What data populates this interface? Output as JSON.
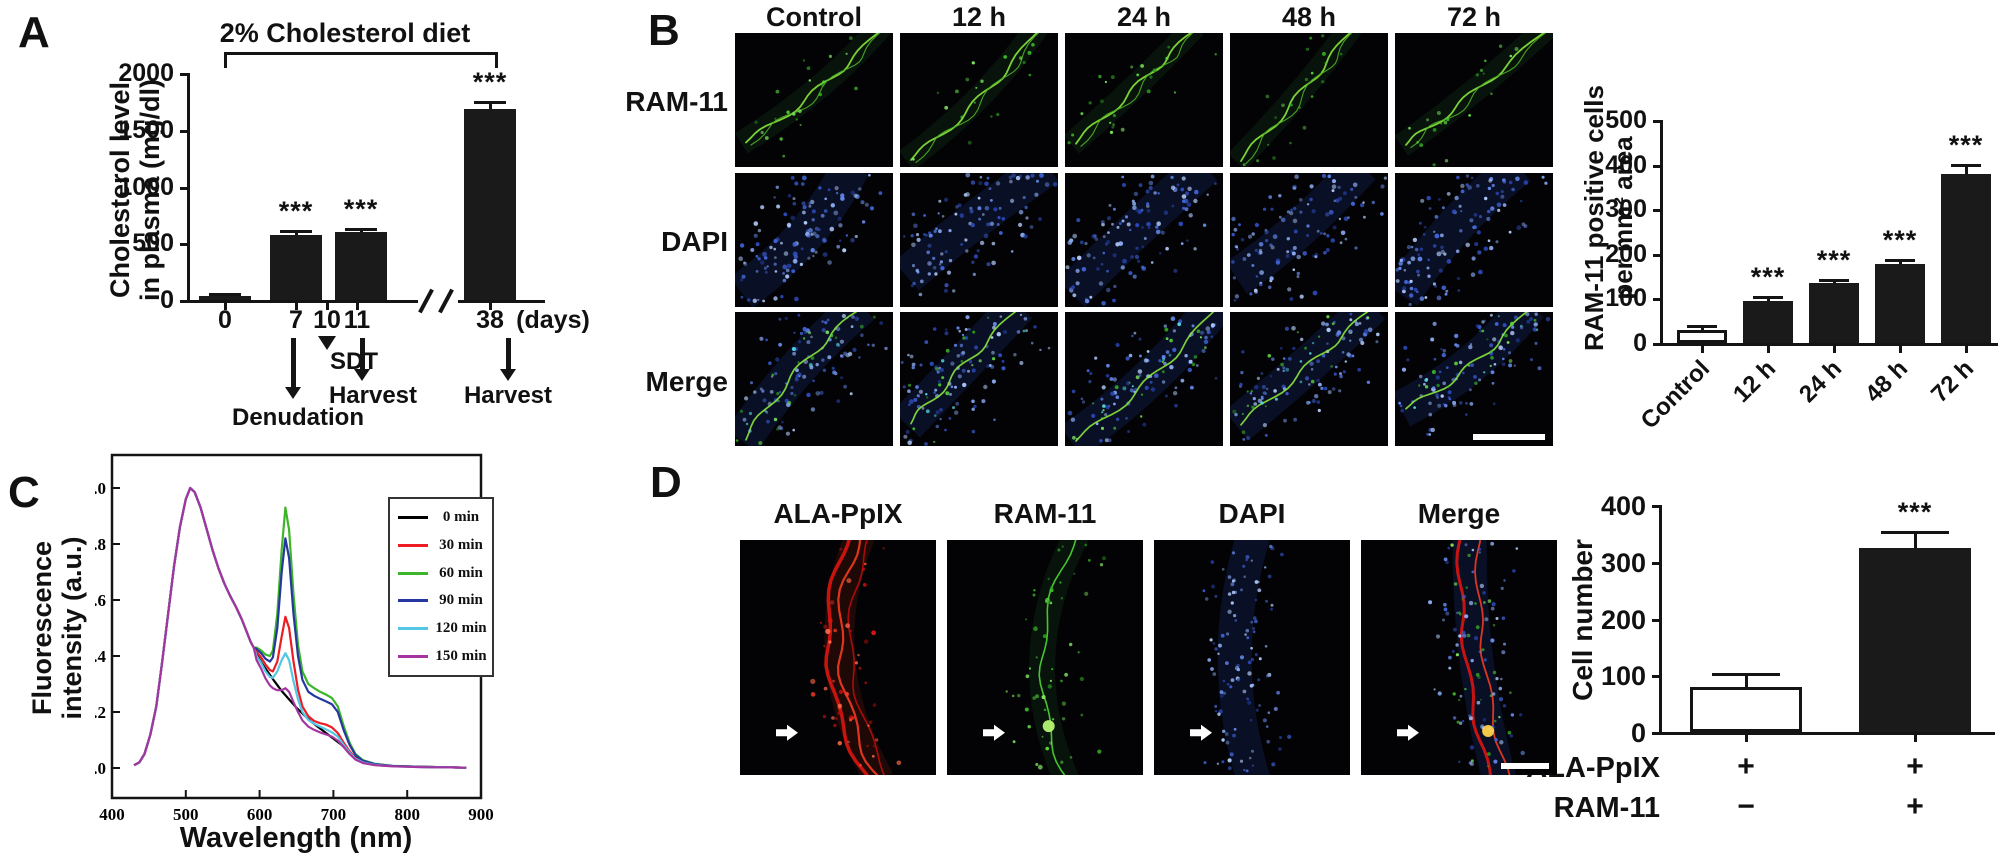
{
  "panelA": {
    "label": "A",
    "title": "2% Cholesterol diet",
    "chart_data": {
      "type": "bar",
      "ylabel_line1": "Cholesterol level",
      "ylabel_line2": "in plasma (mg/dl)",
      "ylim": [
        0,
        2000
      ],
      "yticks": [
        0,
        500,
        1000,
        1500,
        2000
      ],
      "xticks": [
        "0",
        "7",
        "10",
        "11",
        "38"
      ],
      "xunit": "(days)",
      "categories": [
        "0",
        "7",
        "11",
        "38"
      ],
      "values": [
        35,
        575,
        600,
        1680
      ],
      "errors": [
        10,
        25,
        20,
        60
      ],
      "sig": [
        "",
        "***",
        "***",
        "***"
      ],
      "axis_break_between": [
        "11",
        "38"
      ]
    },
    "annotations": {
      "sdt": "SDT",
      "harvest_a": "Harvest",
      "denudation": "Denudation",
      "harvest_b": "Harvest"
    }
  },
  "panelB": {
    "label": "B",
    "col_headers": [
      "Control",
      "12 h",
      "24 h",
      "48 h",
      "72 h"
    ],
    "row_labels": [
      "RAM-11",
      "DAPI",
      "Merge"
    ],
    "chart_data": {
      "type": "bar",
      "ylabel_line1": "RAM-11 positive cells",
      "ylabel_line2": "per mm² area",
      "ylim": [
        0,
        500
      ],
      "yticks": [
        0,
        100,
        200,
        300,
        400,
        500
      ],
      "categories": [
        "Control",
        "12 h",
        "24 h",
        "48 h",
        "72 h"
      ],
      "values": [
        30,
        95,
        135,
        178,
        378
      ],
      "errors": [
        6,
        5,
        5,
        6,
        18
      ],
      "sig": [
        "",
        "***",
        "***",
        "***",
        "***"
      ],
      "white_bars": [
        0
      ]
    }
  },
  "panelC": {
    "label": "C",
    "chart_data": {
      "type": "line",
      "xlabel": "Wavelength (nm)",
      "ylabel_line1": "Fluorescence",
      "ylabel_line2": "intensity (a.u.)",
      "xlim": [
        400,
        900
      ],
      "ylim": [
        0.0,
        1.05
      ],
      "xticks": [
        400,
        500,
        600,
        700,
        800,
        900
      ],
      "yticks": [
        "0.0",
        "0.2",
        "0.4",
        "0.6",
        "0.8",
        "1.0"
      ],
      "legend_position": "top-right",
      "common_points": [
        [
          430,
          0.01
        ],
        [
          437,
          0.02
        ],
        [
          444,
          0.05
        ],
        [
          452,
          0.12
        ],
        [
          460,
          0.22
        ],
        [
          468,
          0.38
        ],
        [
          476,
          0.55
        ],
        [
          484,
          0.72
        ],
        [
          492,
          0.86
        ],
        [
          500,
          0.96
        ],
        [
          506,
          1.0
        ],
        [
          512,
          0.985
        ],
        [
          520,
          0.93
        ],
        [
          528,
          0.855
        ],
        [
          536,
          0.78
        ],
        [
          544,
          0.715
        ],
        [
          552,
          0.66
        ],
        [
          560,
          0.615
        ],
        [
          568,
          0.575
        ],
        [
          576,
          0.53
        ],
        [
          582,
          0.49
        ],
        [
          588,
          0.45
        ],
        [
          592,
          0.43
        ]
      ],
      "series": [
        {
          "name": "0 min",
          "color": "#000000",
          "peak_635": null,
          "points": [
            [
              596,
              0.405
            ],
            [
              604,
              0.37
            ],
            [
              612,
              0.34
            ],
            [
              620,
              0.31
            ],
            [
              630,
              0.275
            ],
            [
              640,
              0.245
            ],
            [
              650,
              0.215
            ],
            [
              660,
              0.19
            ],
            [
              670,
              0.165
            ],
            [
              680,
              0.145
            ],
            [
              690,
              0.125
            ],
            [
              700,
              0.105
            ],
            [
              710,
              0.085
            ],
            [
              718,
              0.065
            ],
            [
              726,
              0.045
            ],
            [
              734,
              0.03
            ],
            [
              744,
              0.02
            ],
            [
              756,
              0.012
            ],
            [
              780,
              0.007
            ],
            [
              820,
              0.004
            ],
            [
              860,
              0.002
            ],
            [
              880,
              0.001
            ]
          ]
        },
        {
          "name": "30 min",
          "color": "#ed1c24",
          "peak_635": 0.54,
          "points": [
            [
              596,
              0.415
            ],
            [
              602,
              0.395
            ],
            [
              608,
              0.37
            ],
            [
              614,
              0.35
            ],
            [
              618,
              0.345
            ],
            [
              624,
              0.38
            ],
            [
              630,
              0.47
            ],
            [
              635,
              0.54
            ],
            [
              640,
              0.5
            ],
            [
              646,
              0.38
            ],
            [
              652,
              0.28
            ],
            [
              658,
              0.22
            ],
            [
              666,
              0.185
            ],
            [
              674,
              0.168
            ],
            [
              682,
              0.16
            ],
            [
              690,
              0.155
            ],
            [
              698,
              0.145
            ],
            [
              706,
              0.125
            ],
            [
              714,
              0.09
            ],
            [
              722,
              0.06
            ],
            [
              730,
              0.035
            ],
            [
              740,
              0.02
            ],
            [
              756,
              0.012
            ],
            [
              780,
              0.007
            ],
            [
              820,
              0.004
            ],
            [
              860,
              0.002
            ],
            [
              880,
              0.001
            ]
          ]
        },
        {
          "name": "60 min",
          "color": "#3db528",
          "peak_635": 0.93,
          "points": [
            [
              596,
              0.43
            ],
            [
              602,
              0.42
            ],
            [
              608,
              0.405
            ],
            [
              614,
              0.4
            ],
            [
              618,
              0.42
            ],
            [
              624,
              0.55
            ],
            [
              630,
              0.78
            ],
            [
              635,
              0.93
            ],
            [
              640,
              0.85
            ],
            [
              646,
              0.62
            ],
            [
              652,
              0.44
            ],
            [
              658,
              0.345
            ],
            [
              666,
              0.3
            ],
            [
              674,
              0.285
            ],
            [
              682,
              0.272
            ],
            [
              690,
              0.262
            ],
            [
              698,
              0.25
            ],
            [
              706,
              0.22
            ],
            [
              714,
              0.15
            ],
            [
              722,
              0.09
            ],
            [
              730,
              0.05
            ],
            [
              740,
              0.028
            ],
            [
              756,
              0.015
            ],
            [
              780,
              0.008
            ],
            [
              820,
              0.004
            ],
            [
              860,
              0.002
            ],
            [
              880,
              0.001
            ]
          ]
        },
        {
          "name": "90 min",
          "color": "#2637a0",
          "peak_635": 0.82,
          "points": [
            [
              596,
              0.425
            ],
            [
              602,
              0.41
            ],
            [
              608,
              0.39
            ],
            [
              614,
              0.38
            ],
            [
              618,
              0.395
            ],
            [
              624,
              0.5
            ],
            [
              630,
              0.7
            ],
            [
              635,
              0.82
            ],
            [
              640,
              0.75
            ],
            [
              646,
              0.55
            ],
            [
              652,
              0.4
            ],
            [
              658,
              0.315
            ],
            [
              666,
              0.272
            ],
            [
              674,
              0.258
            ],
            [
              682,
              0.247
            ],
            [
              690,
              0.238
            ],
            [
              698,
              0.228
            ],
            [
              706,
              0.2
            ],
            [
              714,
              0.135
            ],
            [
              722,
              0.082
            ],
            [
              730,
              0.046
            ],
            [
              740,
              0.026
            ],
            [
              756,
              0.014
            ],
            [
              780,
              0.007
            ],
            [
              820,
              0.004
            ],
            [
              860,
              0.002
            ],
            [
              880,
              0.001
            ]
          ]
        },
        {
          "name": "120 min",
          "color": "#53c7e4",
          "peak_635": 0.41,
          "points": [
            [
              596,
              0.4
            ],
            [
              602,
              0.375
            ],
            [
              608,
              0.345
            ],
            [
              614,
              0.325
            ],
            [
              618,
              0.322
            ],
            [
              624,
              0.345
            ],
            [
              630,
              0.385
            ],
            [
              635,
              0.41
            ],
            [
              640,
              0.385
            ],
            [
              646,
              0.31
            ],
            [
              652,
              0.245
            ],
            [
              658,
              0.2
            ],
            [
              666,
              0.172
            ],
            [
              674,
              0.158
            ],
            [
              682,
              0.148
            ],
            [
              690,
              0.138
            ],
            [
              698,
              0.128
            ],
            [
              706,
              0.112
            ],
            [
              714,
              0.082
            ],
            [
              722,
              0.055
            ],
            [
              730,
              0.033
            ],
            [
              740,
              0.02
            ],
            [
              756,
              0.011
            ],
            [
              780,
              0.006
            ],
            [
              820,
              0.003
            ],
            [
              860,
              0.002
            ],
            [
              880,
              0.001
            ]
          ]
        },
        {
          "name": "150 min",
          "color": "#a435a0",
          "peak_635": 0.28,
          "points": [
            [
              596,
              0.385
            ],
            [
              602,
              0.355
            ],
            [
              608,
              0.32
            ],
            [
              614,
              0.295
            ],
            [
              618,
              0.285
            ],
            [
              624,
              0.278
            ],
            [
              630,
              0.278
            ],
            [
              635,
              0.285
            ],
            [
              640,
              0.272
            ],
            [
              646,
              0.235
            ],
            [
              652,
              0.2
            ],
            [
              658,
              0.17
            ],
            [
              666,
              0.148
            ],
            [
              674,
              0.136
            ],
            [
              682,
              0.127
            ],
            [
              690,
              0.12
            ],
            [
              698,
              0.112
            ],
            [
              706,
              0.098
            ],
            [
              714,
              0.075
            ],
            [
              722,
              0.05
            ],
            [
              730,
              0.03
            ],
            [
              740,
              0.018
            ],
            [
              756,
              0.01
            ],
            [
              780,
              0.006
            ],
            [
              820,
              0.003
            ],
            [
              860,
              0.002
            ],
            [
              880,
              0.001
            ]
          ]
        }
      ]
    }
  },
  "panelD": {
    "label": "D",
    "col_headers": [
      "ALA-PpIX",
      "RAM-11",
      "DAPI",
      "Merge"
    ],
    "chart_data": {
      "type": "bar",
      "ylabel": "Cell number",
      "ylim": [
        0,
        400
      ],
      "yticks": [
        0,
        100,
        200,
        300,
        400
      ],
      "values": [
        80,
        325
      ],
      "errors": [
        20,
        25
      ],
      "sig": [
        "",
        "***"
      ],
      "white_bars": [
        0
      ]
    },
    "sig_table": {
      "rows": [
        {
          "label": "ALA-PpIX",
          "values": [
            "+",
            "+"
          ]
        },
        {
          "label": "RAM-11",
          "values": [
            "−",
            "+"
          ]
        }
      ]
    }
  }
}
